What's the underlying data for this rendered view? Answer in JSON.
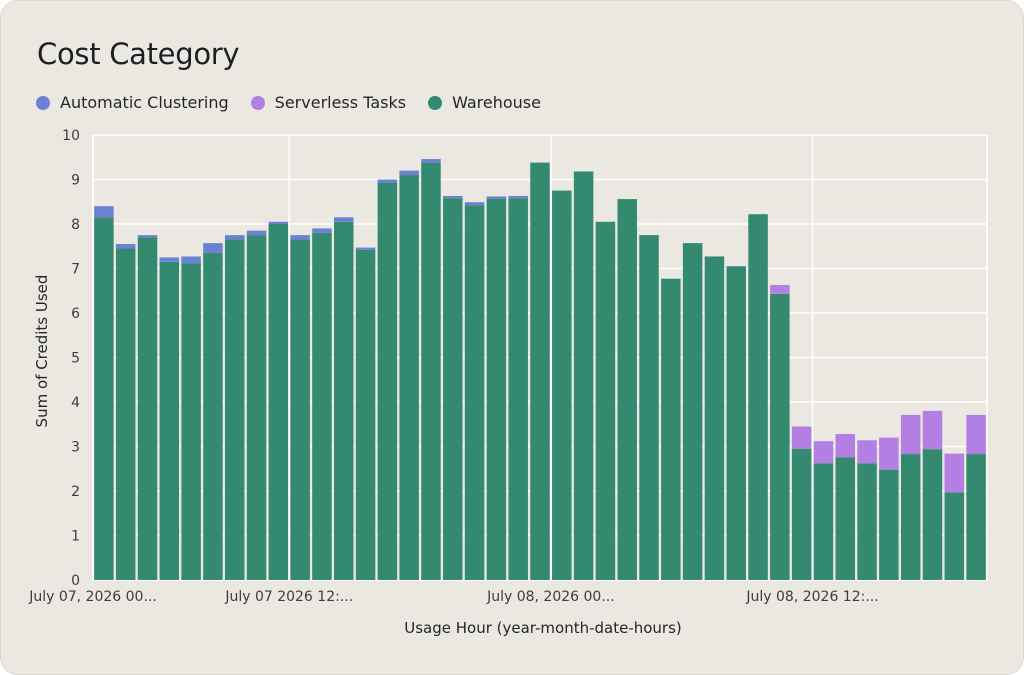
{
  "page": {
    "title": "Cost Category"
  },
  "chart_data": {
    "type": "bar",
    "stacked": true,
    "title": "Cost Category",
    "xlabel": "Usage Hour (year-month-date-hours)",
    "ylabel": "Sum of Credits Used",
    "ylim": [
      0,
      10
    ],
    "yticks": [
      0,
      1,
      2,
      3,
      4,
      5,
      6,
      7,
      8,
      9,
      10
    ],
    "grid": true,
    "legend_position": "top-left",
    "x_tick_labels": [
      {
        "index": 0,
        "label": "July 07, 2026 00..."
      },
      {
        "index": 9,
        "label": "July 07 2026 12:..."
      },
      {
        "index": 21,
        "label": "July 08, 2026 00..."
      },
      {
        "index": 33,
        "label": "July 08, 2026 12:..."
      }
    ],
    "categories": [
      "0",
      "1",
      "2",
      "3",
      "4",
      "5",
      "6",
      "7",
      "8",
      "9",
      "10",
      "11",
      "12",
      "13",
      "14",
      "15",
      "16",
      "17",
      "18",
      "19",
      "20",
      "21",
      "22",
      "23",
      "24",
      "25",
      "26",
      "27",
      "28",
      "29",
      "30",
      "31",
      "32",
      "33",
      "34",
      "35",
      "36",
      "37",
      "38",
      "39",
      "40"
    ],
    "series": [
      {
        "name": "Warehouse",
        "color": "#348a71",
        "values": [
          8.15,
          7.45,
          7.7,
          7.15,
          7.12,
          7.35,
          7.65,
          7.75,
          8.0,
          7.65,
          7.8,
          8.05,
          7.42,
          8.93,
          9.1,
          9.38,
          8.58,
          8.42,
          8.57,
          8.58,
          9.38,
          8.75,
          9.18,
          8.05,
          8.56,
          7.75,
          6.77,
          7.57,
          7.27,
          7.05,
          8.22,
          6.43,
          2.95,
          2.62,
          2.76,
          2.62,
          2.48,
          2.83,
          2.94,
          1.97,
          2.83
        ]
      },
      {
        "name": "Automatic Clustering",
        "color": "#6b82d4",
        "values": [
          0.25,
          0.1,
          0.05,
          0.1,
          0.15,
          0.22,
          0.1,
          0.1,
          0.05,
          0.1,
          0.1,
          0.1,
          0.05,
          0.07,
          0.1,
          0.08,
          0.05,
          0.07,
          0.05,
          0.05,
          0,
          0,
          0,
          0,
          0,
          0,
          0,
          0,
          0,
          0,
          0,
          0,
          0,
          0,
          0,
          0,
          0,
          0,
          0,
          0,
          0
        ]
      },
      {
        "name": "Serverless Tasks",
        "color": "#b37fe3",
        "values": [
          0,
          0,
          0,
          0,
          0,
          0,
          0,
          0,
          0,
          0,
          0,
          0,
          0,
          0,
          0,
          0,
          0,
          0,
          0,
          0,
          0,
          0,
          0,
          0,
          0,
          0,
          0,
          0,
          0,
          0,
          0,
          0.2,
          0.5,
          0.5,
          0.52,
          0.52,
          0.72,
          0.88,
          0.86,
          0.87,
          0.88
        ]
      }
    ]
  },
  "legend": [
    {
      "label": "Automatic Clustering",
      "color": "#6b82d4"
    },
    {
      "label": "Serverless Tasks",
      "color": "#b37fe3"
    },
    {
      "label": "Warehouse",
      "color": "#348a71"
    }
  ]
}
